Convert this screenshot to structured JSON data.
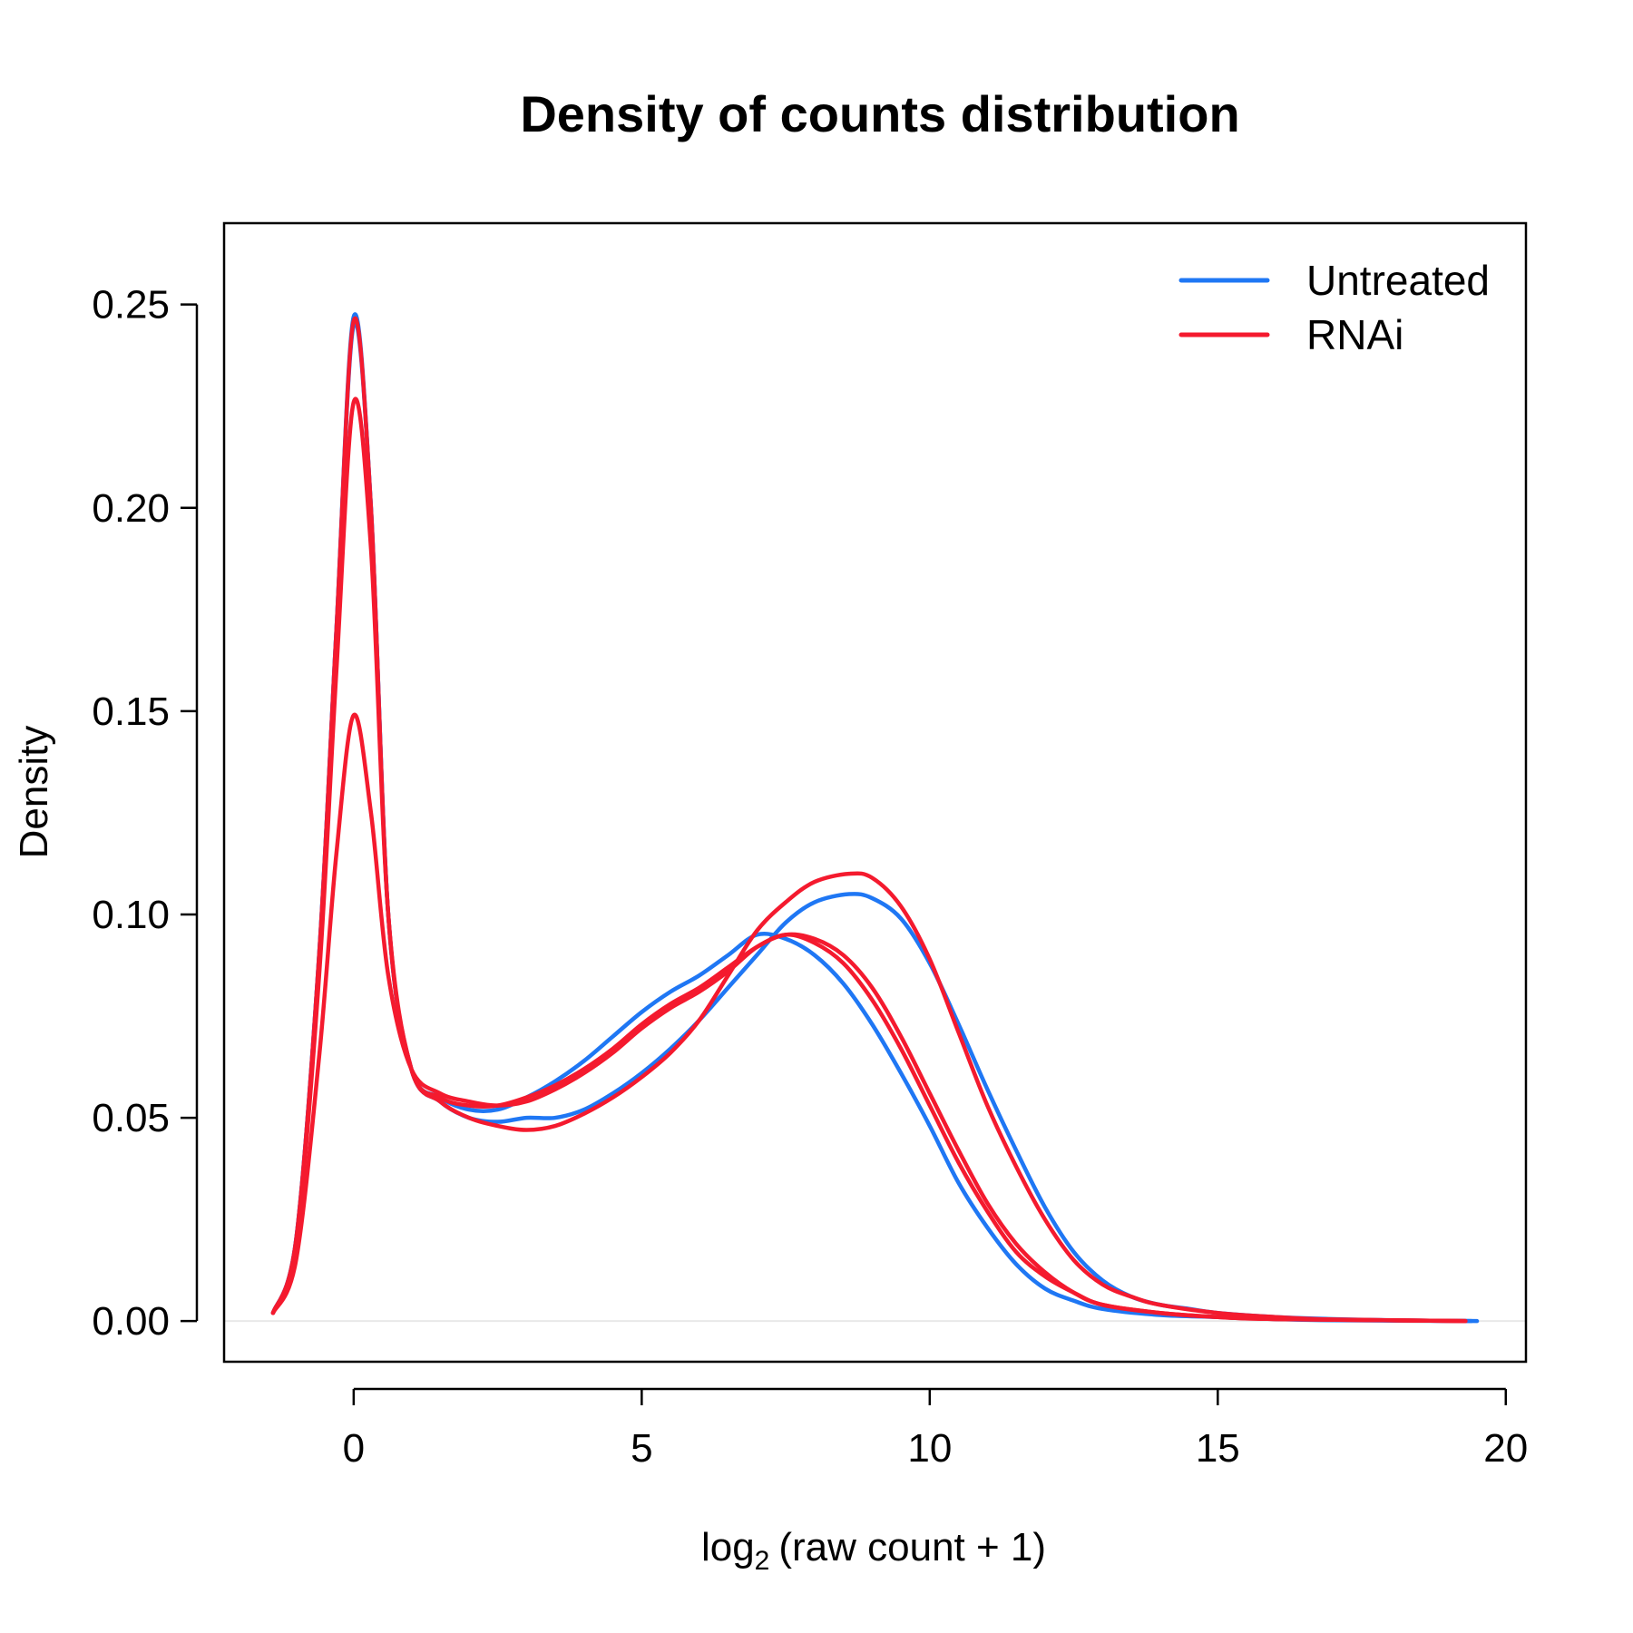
{
  "chart_data": {
    "type": "line",
    "title": "Density of counts distribution",
    "xlabel": {
      "prefix": "log",
      "subscript": "2",
      "body": "(raw count + 1)"
    },
    "ylabel": "Density",
    "xlim": [
      -2.25,
      20.35
    ],
    "ylim": [
      -0.01,
      0.27
    ],
    "xticks": [
      0,
      5,
      10,
      15,
      20
    ],
    "yticks": [
      0.0,
      0.05,
      0.1,
      0.15,
      0.2,
      0.25
    ],
    "ytick_labels": [
      "0.00",
      "0.05",
      "0.10",
      "0.15",
      "0.20",
      "0.25"
    ],
    "grid": false,
    "zero_line": true,
    "legend_position": "top-right",
    "colors": {
      "Untreated": "#1f77f4",
      "RNAi": "#f41a2e",
      "zero_line": "#e8e8e8"
    },
    "legend": [
      {
        "label": "Untreated",
        "color": "#1f77f4"
      },
      {
        "label": "RNAi",
        "color": "#f41a2e"
      }
    ],
    "series": [
      {
        "group": "Untreated",
        "color": "#1f77f4",
        "x": [
          -1.4,
          -1.0,
          -0.6,
          -0.3,
          0.0,
          0.3,
          0.6,
          1.0,
          1.5,
          2.0,
          2.5,
          3.0,
          3.5,
          4.0,
          4.5,
          5.0,
          5.5,
          6.0,
          6.5,
          7.0,
          7.5,
          8.0,
          8.6,
          9.0,
          9.5,
          10.0,
          10.5,
          11.0,
          11.5,
          12.0,
          12.5,
          13.0,
          13.5,
          14.0,
          14.5,
          15.0,
          16.0,
          17.0,
          18.0,
          19.5
        ],
        "y": [
          0.002,
          0.02,
          0.09,
          0.17,
          0.247,
          0.2,
          0.1,
          0.062,
          0.054,
          0.05,
          0.049,
          0.05,
          0.05,
          0.052,
          0.056,
          0.061,
          0.067,
          0.074,
          0.082,
          0.09,
          0.098,
          0.103,
          0.105,
          0.104,
          0.099,
          0.088,
          0.073,
          0.057,
          0.042,
          0.028,
          0.017,
          0.01,
          0.006,
          0.004,
          0.003,
          0.002,
          0.001,
          0.0005,
          0.0002,
          0.0
        ]
      },
      {
        "group": "Untreated",
        "color": "#1f77f4",
        "x": [
          -1.4,
          -1.0,
          -0.6,
          -0.3,
          0.0,
          0.3,
          0.6,
          1.0,
          1.5,
          2.0,
          2.5,
          3.0,
          3.5,
          4.0,
          4.5,
          5.0,
          5.5,
          6.0,
          6.5,
          7.0,
          7.5,
          8.0,
          8.5,
          9.0,
          9.5,
          10.0,
          10.5,
          11.0,
          11.5,
          12.0,
          12.5,
          13.0,
          14.0,
          15.0,
          16.0,
          17.0,
          19.4
        ],
        "y": [
          0.002,
          0.02,
          0.09,
          0.17,
          0.245,
          0.2,
          0.1,
          0.062,
          0.055,
          0.052,
          0.052,
          0.055,
          0.059,
          0.064,
          0.07,
          0.076,
          0.081,
          0.085,
          0.09,
          0.095,
          0.094,
          0.09,
          0.083,
          0.073,
          0.061,
          0.048,
          0.034,
          0.023,
          0.014,
          0.008,
          0.005,
          0.003,
          0.0015,
          0.001,
          0.0005,
          0.0002,
          0.0
        ]
      },
      {
        "group": "RNAi",
        "color": "#f41a2e",
        "x": [
          -1.4,
          -1.0,
          -0.6,
          -0.3,
          0.0,
          0.3,
          0.6,
          1.0,
          1.5,
          2.0,
          2.5,
          3.0,
          3.5,
          4.0,
          4.5,
          5.0,
          5.5,
          6.0,
          6.5,
          7.0,
          7.5,
          8.0,
          8.6,
          9.0,
          9.5,
          10.0,
          10.5,
          11.0,
          11.5,
          12.0,
          12.5,
          13.0,
          13.5,
          14.0,
          15.0,
          16.0,
          17.0,
          19.3
        ],
        "y": [
          0.002,
          0.02,
          0.09,
          0.17,
          0.246,
          0.2,
          0.1,
          0.062,
          0.054,
          0.05,
          0.048,
          0.047,
          0.048,
          0.051,
          0.055,
          0.06,
          0.066,
          0.074,
          0.085,
          0.096,
          0.103,
          0.108,
          0.11,
          0.109,
          0.102,
          0.089,
          0.071,
          0.053,
          0.038,
          0.025,
          0.015,
          0.009,
          0.006,
          0.004,
          0.002,
          0.001,
          0.0004,
          0.0
        ]
      },
      {
        "group": "RNAi",
        "color": "#f41a2e",
        "x": [
          -1.4,
          -1.0,
          -0.6,
          -0.3,
          0.0,
          0.3,
          0.6,
          1.0,
          1.5,
          2.0,
          2.5,
          3.0,
          3.5,
          4.0,
          4.5,
          5.0,
          5.5,
          6.0,
          6.5,
          7.0,
          7.5,
          8.0,
          8.5,
          9.0,
          9.5,
          10.0,
          10.5,
          11.0,
          11.5,
          12.0,
          12.5,
          13.0,
          14.0,
          15.0,
          16.0,
          19.3
        ],
        "y": [
          0.002,
          0.019,
          0.085,
          0.16,
          0.226,
          0.19,
          0.1,
          0.062,
          0.055,
          0.053,
          0.053,
          0.055,
          0.058,
          0.062,
          0.067,
          0.073,
          0.078,
          0.082,
          0.087,
          0.092,
          0.095,
          0.093,
          0.088,
          0.079,
          0.067,
          0.053,
          0.039,
          0.027,
          0.017,
          0.011,
          0.007,
          0.004,
          0.002,
          0.001,
          0.0005,
          0.0
        ]
      },
      {
        "group": "RNAi",
        "color": "#f41a2e",
        "x": [
          -1.4,
          -1.0,
          -0.6,
          -0.3,
          0.0,
          0.3,
          0.6,
          1.0,
          1.5,
          2.0,
          2.5,
          3.0,
          3.5,
          4.0,
          4.5,
          5.0,
          5.5,
          6.0,
          6.5,
          7.0,
          7.5,
          8.0,
          8.5,
          9.0,
          9.5,
          10.0,
          10.5,
          11.0,
          11.5,
          12.0,
          12.5,
          13.0,
          14.0,
          15.0,
          16.0,
          19.3
        ],
        "y": [
          0.002,
          0.015,
          0.065,
          0.115,
          0.149,
          0.125,
          0.085,
          0.062,
          0.056,
          0.054,
          0.053,
          0.054,
          0.057,
          0.061,
          0.066,
          0.072,
          0.077,
          0.081,
          0.086,
          0.092,
          0.095,
          0.094,
          0.09,
          0.082,
          0.07,
          0.056,
          0.042,
          0.029,
          0.019,
          0.012,
          0.007,
          0.004,
          0.002,
          0.001,
          0.0005,
          0.0
        ]
      }
    ]
  }
}
